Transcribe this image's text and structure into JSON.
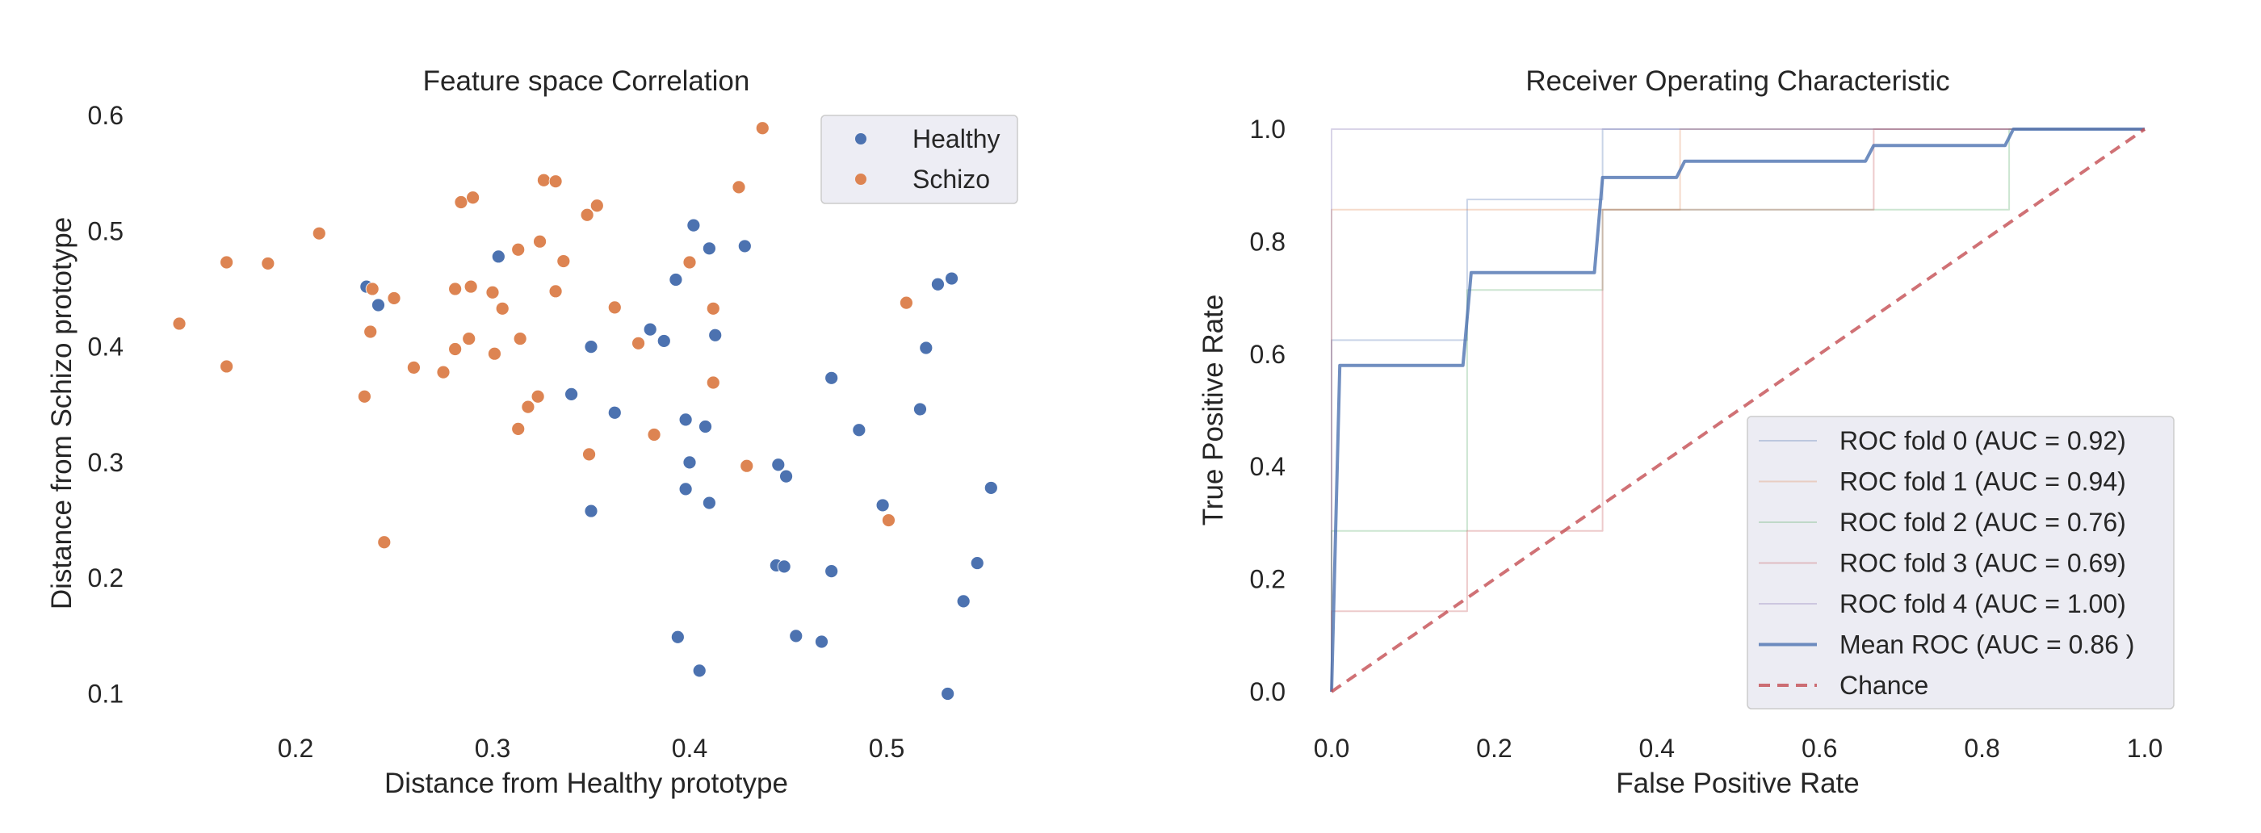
{
  "chart_data": [
    {
      "type": "scatter",
      "title": "Feature space Correlation",
      "xlabel": "Distance from Healthy prototype",
      "ylabel": "Distance from Schizo prototype",
      "xlim": [
        0.125,
        0.565
      ],
      "ylim": [
        0.085,
        0.615
      ],
      "xticks": [
        0.2,
        0.3,
        0.4,
        0.5
      ],
      "yticks": [
        0.1,
        0.2,
        0.3,
        0.4,
        0.5,
        0.6
      ],
      "xtick_labels": [
        "0.2",
        "0.3",
        "0.4",
        "0.5"
      ],
      "ytick_labels": [
        "0.1",
        "0.2",
        "0.3",
        "0.4",
        "0.5",
        "0.6"
      ],
      "grid": false,
      "legend_position": "top-right",
      "series": [
        {
          "name": "Healthy",
          "color": "#4c72b0",
          "points": [
            [
              0.236,
              0.452
            ],
            [
              0.242,
              0.436
            ],
            [
              0.303,
              0.478
            ],
            [
              0.35,
              0.4
            ],
            [
              0.34,
              0.359
            ],
            [
              0.362,
              0.343
            ],
            [
              0.35,
              0.258
            ],
            [
              0.38,
              0.415
            ],
            [
              0.387,
              0.405
            ],
            [
              0.393,
              0.458
            ],
            [
              0.402,
              0.505
            ],
            [
              0.41,
              0.485
            ],
            [
              0.428,
              0.487
            ],
            [
              0.413,
              0.41
            ],
            [
              0.398,
              0.337
            ],
            [
              0.408,
              0.331
            ],
            [
              0.4,
              0.3
            ],
            [
              0.398,
              0.277
            ],
            [
              0.41,
              0.265
            ],
            [
              0.445,
              0.298
            ],
            [
              0.449,
              0.288
            ],
            [
              0.444,
              0.211
            ],
            [
              0.448,
              0.21
            ],
            [
              0.472,
              0.206
            ],
            [
              0.472,
              0.373
            ],
            [
              0.486,
              0.328
            ],
            [
              0.498,
              0.263
            ],
            [
              0.517,
              0.346
            ],
            [
              0.52,
              0.399
            ],
            [
              0.526,
              0.454
            ],
            [
              0.533,
              0.459
            ],
            [
              0.553,
              0.278
            ],
            [
              0.546,
              0.213
            ],
            [
              0.539,
              0.18
            ],
            [
              0.394,
              0.149
            ],
            [
              0.405,
              0.12
            ],
            [
              0.454,
              0.15
            ],
            [
              0.467,
              0.145
            ],
            [
              0.531,
              0.1
            ]
          ]
        },
        {
          "name": "Schizo",
          "color": "#dd8452",
          "points": [
            [
              0.141,
              0.42
            ],
            [
              0.165,
              0.473
            ],
            [
              0.165,
              0.383
            ],
            [
              0.186,
              0.472
            ],
            [
              0.212,
              0.498
            ],
            [
              0.239,
              0.45
            ],
            [
              0.238,
              0.413
            ],
            [
              0.235,
              0.357
            ],
            [
              0.25,
              0.442
            ],
            [
              0.245,
              0.231
            ],
            [
              0.26,
              0.382
            ],
            [
              0.275,
              0.378
            ],
            [
              0.281,
              0.45
            ],
            [
              0.284,
              0.525
            ],
            [
              0.29,
              0.529
            ],
            [
              0.289,
              0.452
            ],
            [
              0.281,
              0.398
            ],
            [
              0.288,
              0.407
            ],
            [
              0.3,
              0.447
            ],
            [
              0.301,
              0.394
            ],
            [
              0.305,
              0.433
            ],
            [
              0.313,
              0.484
            ],
            [
              0.314,
              0.407
            ],
            [
              0.313,
              0.329
            ],
            [
              0.318,
              0.348
            ],
            [
              0.323,
              0.357
            ],
            [
              0.324,
              0.491
            ],
            [
              0.326,
              0.544
            ],
            [
              0.332,
              0.543
            ],
            [
              0.332,
              0.448
            ],
            [
              0.336,
              0.474
            ],
            [
              0.348,
              0.514
            ],
            [
              0.353,
              0.522
            ],
            [
              0.349,
              0.307
            ],
            [
              0.362,
              0.434
            ],
            [
              0.374,
              0.403
            ],
            [
              0.382,
              0.324
            ],
            [
              0.4,
              0.473
            ],
            [
              0.412,
              0.433
            ],
            [
              0.412,
              0.369
            ],
            [
              0.425,
              0.538
            ],
            [
              0.429,
              0.297
            ],
            [
              0.437,
              0.589
            ],
            [
              0.51,
              0.438
            ],
            [
              0.501,
              0.25
            ]
          ]
        }
      ]
    },
    {
      "type": "line",
      "title": "Receiver Operating Characteristic",
      "xlabel": "False Positive Rate",
      "ylabel": "True Positive Rate",
      "xlim": [
        0.0,
        1.0
      ],
      "ylim": [
        0.0,
        1.0
      ],
      "xticks": [
        0.0,
        0.2,
        0.4,
        0.6,
        0.8,
        1.0
      ],
      "yticks": [
        0.0,
        0.2,
        0.4,
        0.6,
        0.8,
        1.0
      ],
      "xtick_labels": [
        "0.0",
        "0.2",
        "0.4",
        "0.6",
        "0.8",
        "1.0"
      ],
      "ytick_labels": [
        "0.0",
        "0.2",
        "0.4",
        "0.6",
        "0.8",
        "1.0"
      ],
      "grid": false,
      "legend_position": "bottom-right",
      "series": [
        {
          "name": "ROC fold 0 (AUC = 0.92)",
          "color": "#4c72b0",
          "style": "thin",
          "points": [
            [
              0,
              0
            ],
            [
              0,
              0.625
            ],
            [
              0.1667,
              0.625
            ],
            [
              0.1667,
              0.875
            ],
            [
              0.3333,
              0.875
            ],
            [
              0.3333,
              1.0
            ],
            [
              1,
              1
            ]
          ]
        },
        {
          "name": "ROC fold 1 (AUC = 0.94)",
          "color": "#dd8452",
          "style": "thin",
          "points": [
            [
              0,
              0
            ],
            [
              0,
              0.857
            ],
            [
              0.4286,
              0.857
            ],
            [
              0.4286,
              1.0
            ],
            [
              1,
              1
            ]
          ]
        },
        {
          "name": "ROC fold 2 (AUC = 0.76)",
          "color": "#55a868",
          "style": "thin",
          "points": [
            [
              0,
              0
            ],
            [
              0,
              0.286
            ],
            [
              0.1667,
              0.286
            ],
            [
              0.1667,
              0.714
            ],
            [
              0.3333,
              0.714
            ],
            [
              0.3333,
              0.857
            ],
            [
              0.8333,
              0.857
            ],
            [
              0.8333,
              1.0
            ],
            [
              1,
              1
            ]
          ]
        },
        {
          "name": "ROC fold 3 (AUC = 0.69)",
          "color": "#c44e52",
          "style": "thin",
          "points": [
            [
              0,
              0
            ],
            [
              0,
              0.143
            ],
            [
              0.1667,
              0.143
            ],
            [
              0.1667,
              0.286
            ],
            [
              0.3333,
              0.286
            ],
            [
              0.3333,
              0.857
            ],
            [
              0.6667,
              0.857
            ],
            [
              0.6667,
              1.0
            ],
            [
              1,
              1
            ]
          ]
        },
        {
          "name": "ROC fold 4 (AUC = 1.00)",
          "color": "#8172b3",
          "style": "thin",
          "points": [
            [
              0,
              0
            ],
            [
              0,
              1.0
            ],
            [
              1,
              1
            ]
          ]
        },
        {
          "name": "Mean ROC (AUC = 0.86 )",
          "color": "#4c72b0",
          "style": "thick",
          "points": [
            [
              0,
              0
            ],
            [
              0.0101,
              0.58
            ],
            [
              0.1616,
              0.58
            ],
            [
              0.1717,
              0.745
            ],
            [
              0.3232,
              0.745
            ],
            [
              0.3333,
              0.914
            ],
            [
              0.4242,
              0.914
            ],
            [
              0.4343,
              0.943
            ],
            [
              0.6566,
              0.943
            ],
            [
              0.6667,
              0.971
            ],
            [
              0.8283,
              0.971
            ],
            [
              0.8384,
              1.0
            ],
            [
              1.0,
              1.0
            ]
          ]
        },
        {
          "name": "Chance",
          "color": "#c44e52",
          "style": "dashed",
          "points": [
            [
              0,
              0
            ],
            [
              1,
              1
            ]
          ]
        }
      ]
    }
  ]
}
